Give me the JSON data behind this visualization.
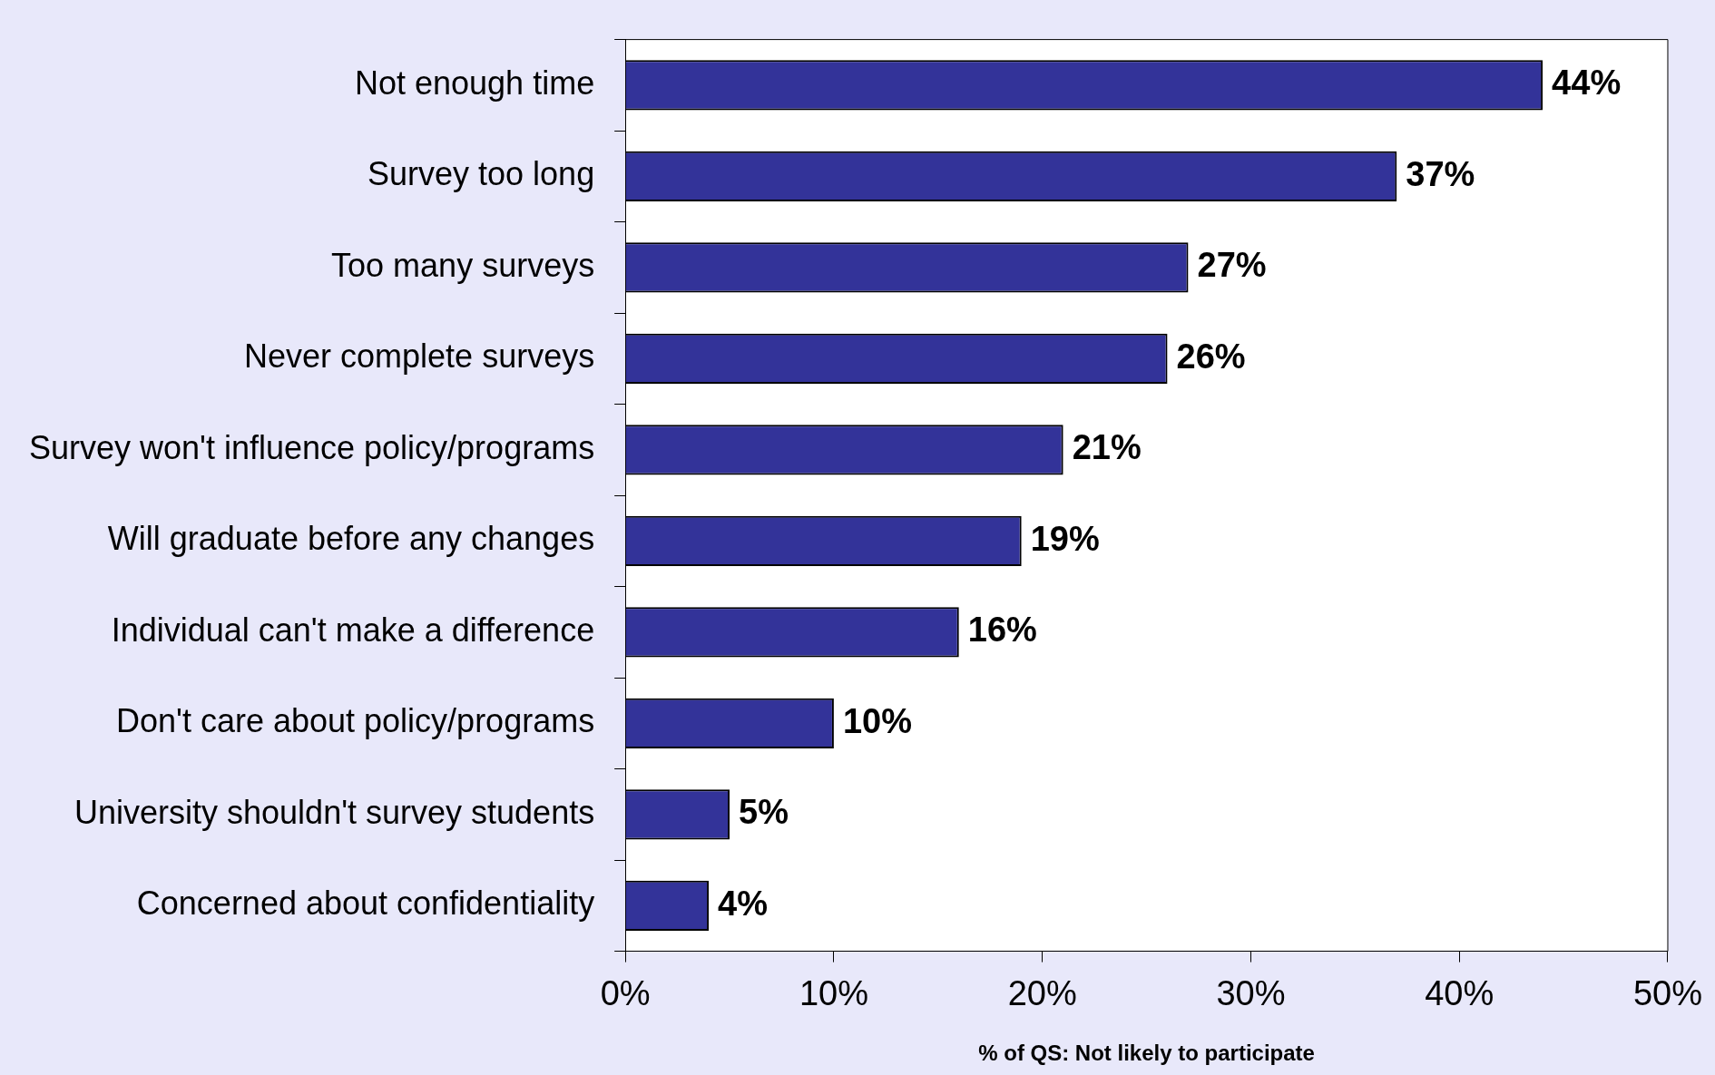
{
  "chart_data": {
    "type": "bar",
    "orientation": "horizontal",
    "xlabel": "% of QS: Not likely to participate",
    "categories": [
      "Not enough time",
      "Survey too long",
      "Too many surveys",
      "Never complete surveys",
      "Survey won't influence policy/programs",
      "Will graduate before any changes",
      "Individual can't make a difference",
      "Don't care about policy/programs",
      "University shouldn't survey students",
      "Concerned about confidentiality"
    ],
    "values": [
      44,
      37,
      27,
      26,
      21,
      19,
      16,
      10,
      5,
      4
    ],
    "value_labels": [
      "44%",
      "37%",
      "27%",
      "26%",
      "21%",
      "19%",
      "16%",
      "10%",
      "5%",
      "4%"
    ],
    "color": "#333399",
    "xlim": [
      0,
      50
    ],
    "xticks": [
      {
        "value": 0,
        "label": "0%"
      },
      {
        "value": 10,
        "label": "10%"
      },
      {
        "value": 20,
        "label": "20%"
      },
      {
        "value": 30,
        "label": "30%"
      },
      {
        "value": 40,
        "label": "40%"
      },
      {
        "value": 50,
        "label": "50%"
      }
    ],
    "grid": false,
    "legend": false
  }
}
